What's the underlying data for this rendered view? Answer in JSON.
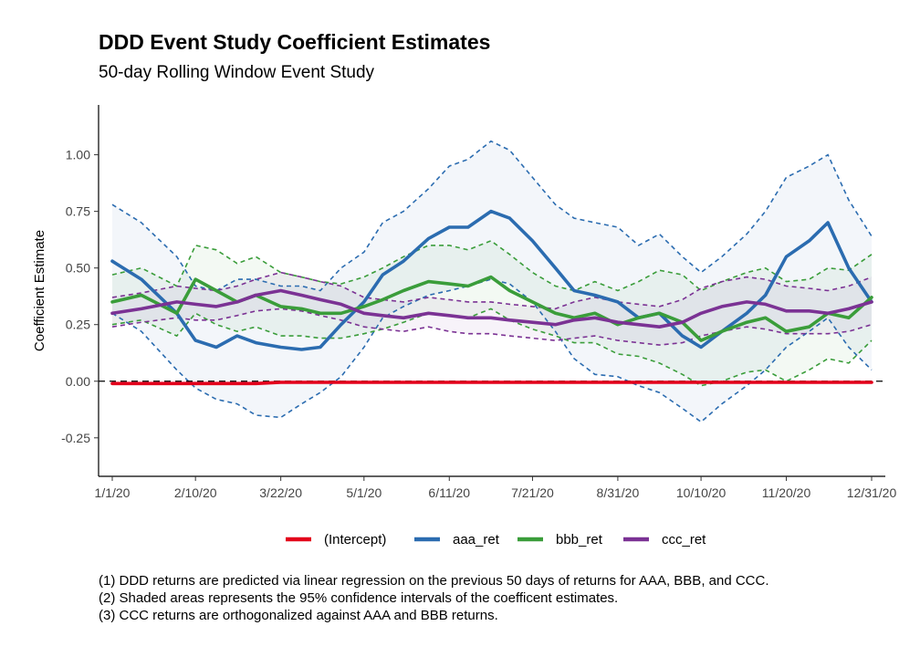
{
  "title": "DDD Event Study Coefficient Estimates",
  "subtitle": "50-day Rolling Window Event Study",
  "notes": [
    "(1)  DDD returns are predicted via linear regression on the previous 50 days of returns for AAA, BBB, and CCC.",
    "(2)  Shaded areas represents the 95% confidence intervals of the coefficent estimates.",
    "(3)  CCC returns are orthogonalized against AAA and BBB returns."
  ],
  "chart_data": {
    "type": "line",
    "title": "DDD Event Study Coefficient Estimates",
    "subtitle": "50-day Rolling Window Event Study",
    "xlabel": "",
    "ylabel": "Coefficient Estimate",
    "x_ticks": [
      "1/1/20",
      "2/10/20",
      "3/22/20",
      "5/1/20",
      "6/11/20",
      "7/21/20",
      "8/31/20",
      "10/10/20",
      "11/20/20",
      "12/31/20"
    ],
    "y_ticks": [
      "-0.25",
      "0.00",
      "0.25",
      "0.50",
      "0.75",
      "1.00"
    ],
    "ylim": [
      -0.42,
      1.22
    ],
    "xlim_days": [
      -5,
      370
    ],
    "reference_line": {
      "y": 0,
      "style": "dashed"
    },
    "grid": false,
    "legend_position": "bottom",
    "legend": [
      "(Intercept)",
      "aaa_ret",
      "bbb_ret",
      "ccc_ret"
    ],
    "x_dates": [
      "1/1/20",
      "1/15/20",
      "2/1/20",
      "2/10/20",
      "2/20/20",
      "3/1/20",
      "3/10/20",
      "3/22/20",
      "4/1/20",
      "4/10/20",
      "4/20/20",
      "5/1/20",
      "5/10/20",
      "5/20/20",
      "6/1/20",
      "6/11/20",
      "6/20/20",
      "7/1/20",
      "7/10/20",
      "7/21/20",
      "8/1/20",
      "8/10/20",
      "8/20/20",
      "8/31/20",
      "9/10/20",
      "9/20/20",
      "10/1/20",
      "10/10/20",
      "10/20/20",
      "11/1/20",
      "11/10/20",
      "11/20/20",
      "12/1/20",
      "12/10/20",
      "12/20/20",
      "12/31/20"
    ],
    "series": [
      {
        "name": "(Intercept)",
        "color": "#e3001b",
        "values": [
          -0.01,
          -0.01,
          -0.01,
          -0.01,
          -0.01,
          -0.01,
          -0.01,
          -0.005,
          -0.005,
          -0.005,
          -0.005,
          -0.005,
          -0.005,
          -0.005,
          -0.005,
          -0.005,
          -0.005,
          -0.005,
          -0.005,
          -0.005,
          -0.005,
          -0.005,
          -0.005,
          -0.005,
          -0.005,
          -0.005,
          -0.005,
          -0.005,
          -0.005,
          -0.005,
          -0.005,
          -0.005,
          -0.005,
          -0.005,
          -0.005,
          -0.005
        ],
        "lower": [
          -0.02,
          -0.02,
          -0.02,
          -0.02,
          -0.02,
          -0.02,
          -0.02,
          -0.015,
          -0.015,
          -0.015,
          -0.015,
          -0.015,
          -0.015,
          -0.015,
          -0.015,
          -0.015,
          -0.015,
          -0.015,
          -0.015,
          -0.015,
          -0.015,
          -0.015,
          -0.015,
          -0.015,
          -0.015,
          -0.015,
          -0.015,
          -0.015,
          -0.015,
          -0.015,
          -0.015,
          -0.015,
          -0.015,
          -0.015,
          -0.015,
          -0.015
        ],
        "upper": [
          0.0,
          0.0,
          0.0,
          0.0,
          0.0,
          0.0,
          0.0,
          0.005,
          0.005,
          0.005,
          0.005,
          0.005,
          0.005,
          0.005,
          0.005,
          0.005,
          0.005,
          0.005,
          0.005,
          0.005,
          0.005,
          0.005,
          0.005,
          0.005,
          0.005,
          0.005,
          0.005,
          0.005,
          0.005,
          0.005,
          0.005,
          0.005,
          0.005,
          0.005,
          0.005,
          0.005
        ]
      },
      {
        "name": "aaa_ret",
        "color": "#2b6cb0",
        "values": [
          0.53,
          0.45,
          0.3,
          0.18,
          0.15,
          0.2,
          0.17,
          0.15,
          0.14,
          0.15,
          0.25,
          0.35,
          0.47,
          0.53,
          0.63,
          0.68,
          0.68,
          0.75,
          0.72,
          0.62,
          0.5,
          0.4,
          0.38,
          0.35,
          0.28,
          0.3,
          0.2,
          0.15,
          0.22,
          0.3,
          0.38,
          0.55,
          0.62,
          0.7,
          0.5,
          0.35
        ],
        "lower": [
          0.3,
          0.22,
          0.05,
          -0.03,
          -0.08,
          -0.1,
          -0.15,
          -0.16,
          -0.1,
          -0.05,
          0.02,
          0.15,
          0.28,
          0.33,
          0.38,
          0.4,
          0.42,
          0.45,
          0.43,
          0.35,
          0.22,
          0.1,
          0.03,
          0.02,
          -0.02,
          -0.05,
          -0.12,
          -0.18,
          -0.1,
          -0.02,
          0.05,
          0.15,
          0.22,
          0.28,
          0.15,
          0.05
        ],
        "upper": [
          0.78,
          0.7,
          0.55,
          0.42,
          0.4,
          0.45,
          0.45,
          0.42,
          0.42,
          0.4,
          0.5,
          0.57,
          0.7,
          0.75,
          0.85,
          0.95,
          0.98,
          1.06,
          1.02,
          0.9,
          0.78,
          0.72,
          0.7,
          0.68,
          0.6,
          0.65,
          0.55,
          0.48,
          0.55,
          0.65,
          0.75,
          0.9,
          0.95,
          1.0,
          0.8,
          0.64
        ]
      },
      {
        "name": "bbb_ret",
        "color": "#3a9d3a",
        "values": [
          0.35,
          0.38,
          0.3,
          0.45,
          0.4,
          0.35,
          0.38,
          0.33,
          0.32,
          0.3,
          0.3,
          0.33,
          0.36,
          0.4,
          0.44,
          0.43,
          0.42,
          0.46,
          0.4,
          0.35,
          0.3,
          0.28,
          0.3,
          0.25,
          0.28,
          0.3,
          0.26,
          0.18,
          0.22,
          0.26,
          0.28,
          0.22,
          0.24,
          0.3,
          0.28,
          0.37
        ],
        "lower": [
          0.25,
          0.27,
          0.2,
          0.3,
          0.25,
          0.22,
          0.24,
          0.2,
          0.2,
          0.19,
          0.19,
          0.21,
          0.23,
          0.26,
          0.3,
          0.29,
          0.28,
          0.32,
          0.27,
          0.23,
          0.2,
          0.17,
          0.17,
          0.12,
          0.11,
          0.08,
          0.03,
          -0.02,
          0.0,
          0.04,
          0.05,
          0.0,
          0.05,
          0.1,
          0.08,
          0.18
        ],
        "upper": [
          0.47,
          0.5,
          0.42,
          0.6,
          0.58,
          0.52,
          0.55,
          0.48,
          0.46,
          0.44,
          0.43,
          0.46,
          0.5,
          0.55,
          0.6,
          0.6,
          0.58,
          0.62,
          0.56,
          0.48,
          0.42,
          0.4,
          0.44,
          0.4,
          0.44,
          0.49,
          0.47,
          0.4,
          0.44,
          0.48,
          0.5,
          0.44,
          0.45,
          0.5,
          0.49,
          0.56
        ]
      },
      {
        "name": "ccc_ret",
        "color": "#7b3294",
        "values": [
          0.3,
          0.32,
          0.35,
          0.34,
          0.33,
          0.35,
          0.38,
          0.4,
          0.38,
          0.36,
          0.34,
          0.3,
          0.29,
          0.28,
          0.3,
          0.29,
          0.28,
          0.28,
          0.27,
          0.26,
          0.25,
          0.27,
          0.28,
          0.26,
          0.25,
          0.24,
          0.26,
          0.3,
          0.33,
          0.35,
          0.34,
          0.31,
          0.31,
          0.3,
          0.32,
          0.35
        ],
        "lower": [
          0.24,
          0.26,
          0.28,
          0.27,
          0.27,
          0.29,
          0.31,
          0.32,
          0.31,
          0.29,
          0.27,
          0.24,
          0.23,
          0.22,
          0.24,
          0.22,
          0.21,
          0.21,
          0.2,
          0.19,
          0.18,
          0.19,
          0.2,
          0.18,
          0.17,
          0.16,
          0.17,
          0.2,
          0.22,
          0.24,
          0.23,
          0.21,
          0.21,
          0.21,
          0.22,
          0.25
        ],
        "upper": [
          0.37,
          0.39,
          0.42,
          0.41,
          0.4,
          0.42,
          0.45,
          0.48,
          0.46,
          0.44,
          0.42,
          0.37,
          0.36,
          0.35,
          0.37,
          0.36,
          0.35,
          0.35,
          0.34,
          0.33,
          0.32,
          0.35,
          0.37,
          0.35,
          0.34,
          0.33,
          0.36,
          0.41,
          0.44,
          0.46,
          0.45,
          0.42,
          0.41,
          0.4,
          0.42,
          0.46
        ]
      }
    ]
  }
}
